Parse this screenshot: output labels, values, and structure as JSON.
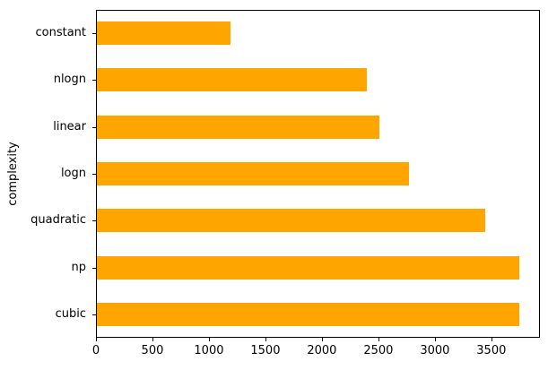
{
  "chart_data": {
    "type": "bar",
    "orientation": "horizontal",
    "title": "",
    "xlabel": "",
    "ylabel": "complexity",
    "categories": [
      "constant",
      "nlogn",
      "linear",
      "logn",
      "quadratic",
      "np",
      "cubic"
    ],
    "values": [
      1180,
      2390,
      2500,
      2760,
      3440,
      3740,
      3740
    ],
    "xticks": [
      0,
      500,
      1000,
      1500,
      2000,
      2500,
      3000,
      3500
    ],
    "xlim": [
      0,
      3930
    ],
    "bar_color": "#FFA500",
    "axis_color": "#000000",
    "background_color": "#ffffff",
    "grid": false,
    "legend": false,
    "bar_rel_thickness": 0.5
  }
}
